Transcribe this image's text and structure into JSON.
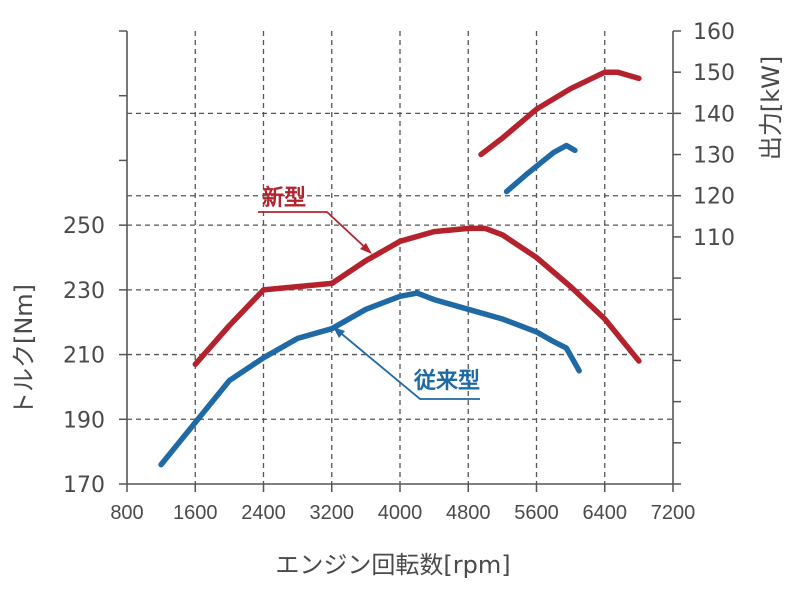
{
  "chart_data": {
    "type": "line",
    "xlabel": "エンジン回転数[rpm]",
    "ylabel_left": "トルク[Nm]",
    "ylabel_right": "出力[kW]",
    "x_ticks": [
      "800",
      "1600",
      "2400",
      "3200",
      "4000",
      "4800",
      "5600",
      "6400",
      "7200"
    ],
    "xlim": [
      800,
      7200
    ],
    "torque_ticks": [
      "170",
      "190",
      "210",
      "230",
      "250"
    ],
    "torque_lim": [
      170,
      310
    ],
    "power_ticks": [
      "110",
      "120",
      "130",
      "140",
      "150",
      "160"
    ],
    "power_lim": [
      50,
      160
    ],
    "grid": true,
    "colors": {
      "new": "#b4232d",
      "old": "#1f6aa5",
      "grid": "#555555",
      "axis": "#555555"
    },
    "series": [
      {
        "name": "新型",
        "axis": "torque",
        "color": "#b4232d",
        "x": [
          1600,
          2000,
          2400,
          2800,
          3200,
          3600,
          4000,
          4400,
          4800,
          5000,
          5200,
          5600,
          6000,
          6400,
          6800
        ],
        "y": [
          207,
          219,
          230,
          231,
          232,
          239,
          245,
          248,
          249,
          249,
          247,
          240,
          231,
          221,
          208
        ]
      },
      {
        "name": "従来型",
        "axis": "torque",
        "color": "#1f6aa5",
        "x": [
          1200,
          1600,
          2000,
          2400,
          2800,
          3200,
          3600,
          3800,
          4000,
          4200,
          4400,
          4800,
          5200,
          5600,
          5800,
          5950,
          6100
        ],
        "y": [
          176,
          189,
          202,
          209,
          215,
          218,
          224,
          226,
          228,
          229,
          227,
          224,
          221,
          217,
          214,
          212,
          205
        ]
      },
      {
        "name": "",
        "axis": "power",
        "color": "#b4232d",
        "x": [
          4950,
          5200,
          5600,
          6000,
          6400,
          6550,
          6800
        ],
        "y": [
          130,
          134,
          141,
          146,
          150,
          150,
          148.5
        ]
      },
      {
        "name": "",
        "axis": "power",
        "color": "#1f6aa5",
        "x": [
          5250,
          5500,
          5800,
          5950,
          6050
        ],
        "y": [
          121,
          125.5,
          130.5,
          132.2,
          131
        ]
      }
    ],
    "annotations": [
      {
        "text": "新型",
        "color": "#b4232d"
      },
      {
        "text": "従来型",
        "color": "#1f6aa5"
      }
    ]
  }
}
